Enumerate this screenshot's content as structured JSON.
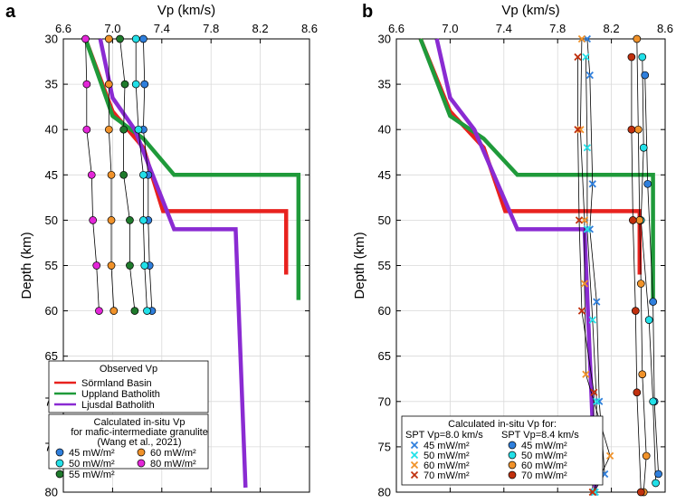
{
  "figure": {
    "colors": {
      "sormland": "#e8221e",
      "uppland": "#1f9a3a",
      "ljusdal": "#8a2bd2",
      "p45": "#2f7fdc",
      "p50": "#22e0e8",
      "p55": "#1f7a2c",
      "p60": "#f0922a",
      "p70": "#c0300e",
      "p80": "#e326d8"
    }
  },
  "chart_data": [
    {
      "panel": "a",
      "type": "line",
      "xlabel": "Vp (km/s)",
      "ylabel": "Depth (km)",
      "xlim": [
        6.6,
        8.6
      ],
      "ylim": [
        30,
        80
      ],
      "x_ticks": [
        "6.6",
        "7.0",
        "7.4",
        "7.8",
        "8.2",
        "8.6"
      ],
      "y_ticks": [
        "30",
        "35",
        "40",
        "45",
        "50",
        "55",
        "60",
        "65",
        "70",
        "75",
        "80"
      ],
      "grid": true,
      "series": [
        {
          "name": "Sörmland Basin",
          "color_key": "sormland",
          "points": [
            [
              6.78,
              30
            ],
            [
              7.0,
              38
            ],
            [
              7.25,
              42
            ],
            [
              7.41,
              49
            ],
            [
              8.41,
              49
            ],
            [
              8.41,
              56
            ]
          ]
        },
        {
          "name": "Uppland Batholith",
          "color_key": "uppland",
          "points": [
            [
              6.78,
              30
            ],
            [
              7.0,
              38.5
            ],
            [
              7.25,
              41
            ],
            [
              7.5,
              45
            ],
            [
              8.51,
              45
            ],
            [
              8.51,
              58.8
            ]
          ]
        },
        {
          "name": "Ljusdal Batholith",
          "color_key": "ljusdal",
          "points": [
            [
              6.9,
              30
            ],
            [
              7.0,
              36.5
            ],
            [
              7.18,
              40
            ],
            [
              7.5,
              51
            ],
            [
              8.0,
              51
            ],
            [
              8.08,
              79.5
            ]
          ]
        }
      ],
      "observed_groups": [
        {
          "label": "45 mW/m²",
          "color_key": "p45",
          "points": [
            [
              7.25,
              30
            ],
            [
              7.26,
              35
            ],
            [
              7.25,
              40
            ],
            [
              7.29,
              45
            ],
            [
              7.29,
              50
            ],
            [
              7.3,
              55
            ],
            [
              7.32,
              60
            ]
          ]
        },
        {
          "label": "50 mW/m²",
          "color_key": "p50",
          "points": [
            [
              7.19,
              30
            ],
            [
              7.19,
              35
            ],
            [
              7.21,
              40
            ],
            [
              7.25,
              45
            ],
            [
              7.25,
              50
            ],
            [
              7.26,
              55
            ],
            [
              7.28,
              60
            ]
          ]
        },
        {
          "label": "55 mW/m²",
          "color_key": "p55",
          "points": [
            [
              7.06,
              30
            ],
            [
              7.1,
              35
            ],
            [
              7.09,
              40
            ],
            [
              7.09,
              45
            ],
            [
              7.14,
              50
            ],
            [
              7.14,
              55
            ],
            [
              7.18,
              60
            ]
          ]
        },
        {
          "label": "60 mW/m²",
          "color_key": "p60",
          "points": [
            [
              6.97,
              30
            ],
            [
              6.97,
              35
            ],
            [
              6.97,
              40
            ],
            [
              6.99,
              45
            ],
            [
              6.99,
              50
            ],
            [
              6.99,
              55
            ],
            [
              7.01,
              60
            ]
          ]
        },
        {
          "label": "80 mW/m²",
          "color_key": "p80",
          "points": [
            [
              6.78,
              30
            ],
            [
              6.79,
              35
            ],
            [
              6.79,
              40
            ],
            [
              6.83,
              45
            ],
            [
              6.84,
              50
            ],
            [
              6.87,
              55
            ],
            [
              6.89,
              60
            ]
          ]
        }
      ],
      "legend1": {
        "title": "Observed Vp",
        "items": [
          "Sörmland Basin",
          "Uppland Batholith",
          "Ljusdal Batholith"
        ]
      },
      "legend2": {
        "title_lines": [
          "Calculated in-situ Vp",
          "for mafic-intermediate granulite",
          "(Wang et al., 2021)"
        ],
        "col1": [
          {
            "label": "45 mW/m²",
            "color_key": "p45"
          },
          {
            "label": "50 mW/m²",
            "color_key": "p50"
          },
          {
            "label": "55 mW/m²",
            "color_key": "p55"
          }
        ],
        "col2": [
          {
            "label": "60 mW/m²",
            "color_key": "p60"
          },
          {
            "label": "80 mW/m²",
            "color_key": "p80"
          }
        ]
      }
    },
    {
      "panel": "b",
      "type": "line",
      "xlabel": "Vp (km/s)",
      "ylabel": "Depth (km)",
      "xlim": [
        6.6,
        8.6
      ],
      "ylim": [
        30,
        80
      ],
      "x_ticks": [
        "6.6",
        "7.0",
        "7.4",
        "7.8",
        "8.2",
        "8.6"
      ],
      "y_ticks": [
        "30",
        "35",
        "40",
        "45",
        "50",
        "55",
        "60",
        "65",
        "70",
        "75",
        "80"
      ],
      "grid": true,
      "series": [
        {
          "name": "Sörmland Basin",
          "color_key": "sormland",
          "points": [
            [
              6.78,
              30
            ],
            [
              7.0,
              38
            ],
            [
              7.25,
              42
            ],
            [
              7.41,
              49
            ],
            [
              8.41,
              49
            ],
            [
              8.41,
              56
            ]
          ]
        },
        {
          "name": "Uppland Batholith",
          "color_key": "uppland",
          "points": [
            [
              6.78,
              30
            ],
            [
              7.0,
              38.5
            ],
            [
              7.25,
              41
            ],
            [
              7.5,
              45
            ],
            [
              8.51,
              45
            ],
            [
              8.51,
              58.8
            ]
          ]
        },
        {
          "name": "Ljusdal Batholith",
          "color_key": "ljusdal",
          "points": [
            [
              6.9,
              30
            ],
            [
              7.0,
              36.5
            ],
            [
              7.18,
              40
            ],
            [
              7.5,
              51
            ],
            [
              8.0,
              51
            ],
            [
              8.08,
              79.5
            ]
          ]
        }
      ],
      "cross_groups": [
        {
          "label": "45 mW/m²",
          "color_key": "p45",
          "points": [
            [
              8.02,
              30
            ],
            [
              8.04,
              34
            ],
            [
              8.06,
              46
            ],
            [
              8.04,
              51
            ],
            [
              8.09,
              59
            ],
            [
              8.11,
              70
            ],
            [
              8.15,
              78
            ],
            [
              8.07,
              80
            ]
          ]
        },
        {
          "label": "50 mW/m²",
          "color_key": "p50",
          "points": [
            [
              8.01,
              32
            ],
            [
              8.02,
              42
            ],
            [
              8.02,
              51
            ],
            [
              8.06,
              61
            ],
            [
              8.09,
              70
            ],
            [
              8.08,
              80
            ]
          ]
        },
        {
          "label": "60 mW/m²",
          "color_key": "p60",
          "points": [
            [
              7.98,
              30
            ],
            [
              7.97,
              40
            ],
            [
              8.0,
              50
            ],
            [
              8.0,
              57
            ],
            [
              8.01,
              67
            ],
            [
              8.19,
              76
            ],
            [
              8.06,
              80
            ]
          ]
        },
        {
          "label": "70 mW/m²",
          "color_key": "p70",
          "points": [
            [
              7.95,
              32
            ],
            [
              7.95,
              40
            ],
            [
              7.96,
              50
            ],
            [
              7.98,
              60
            ],
            [
              8.07,
              69
            ],
            [
              8.06,
              80
            ]
          ]
        }
      ],
      "circle_groups": [
        {
          "label": "45 mW/m²",
          "color_key": "p45",
          "points": [
            [
              8.45,
              34
            ],
            [
              8.47,
              46
            ],
            [
              8.51,
              59
            ],
            [
              8.52,
              70
            ],
            [
              8.55,
              78
            ]
          ]
        },
        {
          "label": "50 mW/m²",
          "color_key": "p50",
          "points": [
            [
              8.43,
              32
            ],
            [
              8.44,
              42
            ],
            [
              8.42,
              50
            ],
            [
              8.48,
              61
            ],
            [
              8.51,
              70
            ],
            [
              8.53,
              79
            ]
          ]
        },
        {
          "label": "60 mW/m²",
          "color_key": "p60",
          "points": [
            [
              8.39,
              30
            ],
            [
              8.4,
              40
            ],
            [
              8.41,
              50
            ],
            [
              8.42,
              57
            ],
            [
              8.43,
              67
            ],
            [
              8.46,
              76
            ],
            [
              8.44,
              80
            ]
          ]
        },
        {
          "label": "70 mW/m²",
          "color_key": "p70",
          "points": [
            [
              8.35,
              32
            ],
            [
              8.35,
              40
            ],
            [
              8.36,
              50
            ],
            [
              8.38,
              60
            ],
            [
              8.39,
              69
            ],
            [
              8.42,
              80
            ]
          ]
        }
      ],
      "legend": {
        "title": "Calculated in-situ Vp for:",
        "col1_title": "SPT Vp=8.0 km/s",
        "col2_title": "SPT Vp=8.4 km/s",
        "col1": [
          {
            "label": "45 mW/m²",
            "color_key": "p45"
          },
          {
            "label": "50 mW/m²",
            "color_key": "p50"
          },
          {
            "label": "60 mW/m²",
            "color_key": "p60"
          },
          {
            "label": "70 mW/m²",
            "color_key": "p70"
          }
        ],
        "col2": [
          {
            "label": "45 mW/m²",
            "color_key": "p45"
          },
          {
            "label": "50 mW/m²",
            "color_key": "p50"
          },
          {
            "label": "60 mW/m²",
            "color_key": "p60"
          },
          {
            "label": "70 mW/m²",
            "color_key": "p70"
          }
        ]
      }
    }
  ]
}
